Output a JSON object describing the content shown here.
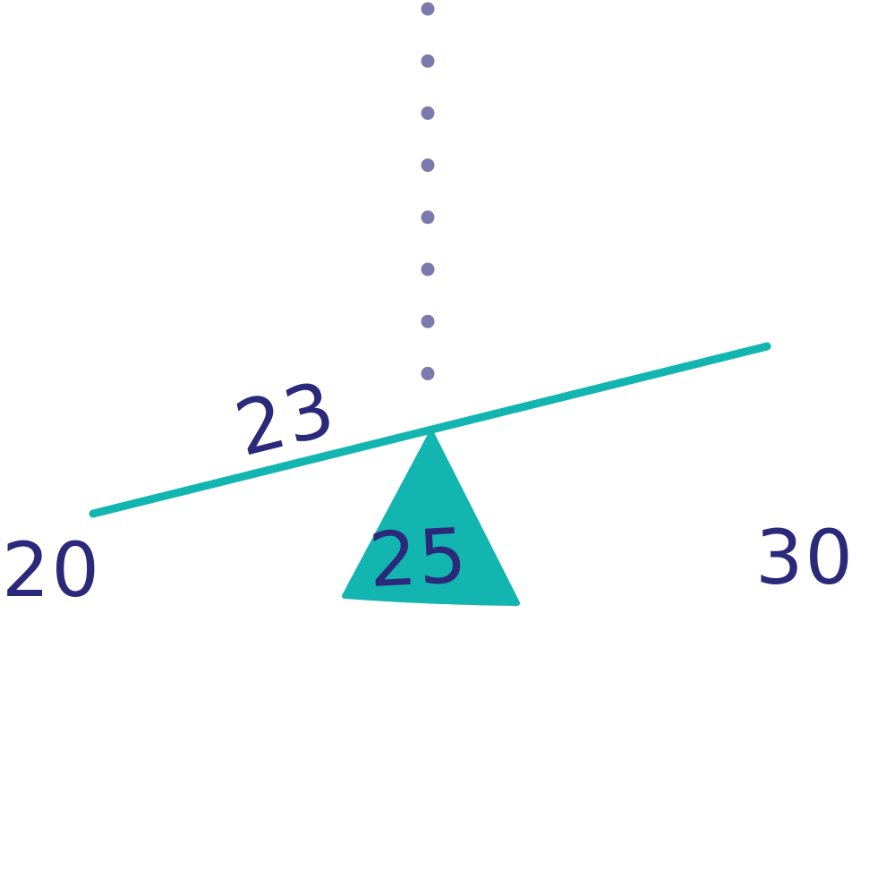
{
  "labels": {
    "left_end": "20",
    "fulcrum": "25",
    "right_end": "30",
    "beam": "23"
  },
  "colors": {
    "beam": "#13b5b0",
    "fulcrum": "#13b5b0",
    "text": "#2b2a7a",
    "dots": "#7a7aad",
    "background": "#ffffff"
  },
  "icons": {
    "fulcrum": "triangle-fulcrum-icon",
    "balance_line": "dotted-vertical-line"
  }
}
